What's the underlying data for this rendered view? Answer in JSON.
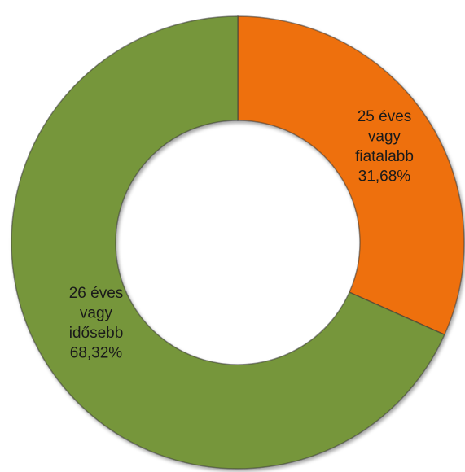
{
  "chart_data": {
    "type": "pie",
    "variant": "donut",
    "categories": [
      "25 éves vagy fiatalabb",
      "26 éves vagy idősebb"
    ],
    "values": [
      31.68,
      68.32
    ],
    "value_labels": [
      "31,68%",
      "68,32%"
    ],
    "label_lines": [
      [
        "25 éves",
        "vagy",
        "fiatalabb",
        "31,68%"
      ],
      [
        "26 éves",
        "vagy",
        "idősebb",
        "68,32%"
      ]
    ],
    "colors": [
      "#ee6f0a",
      "#76963a"
    ],
    "legend": "none",
    "title": ""
  }
}
